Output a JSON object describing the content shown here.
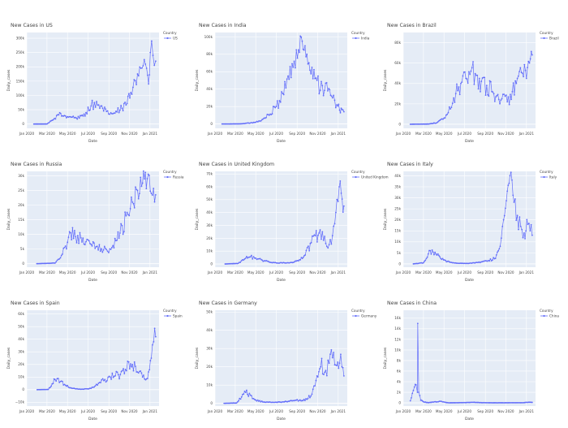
{
  "chart_data": [
    {
      "type": "line",
      "title": "New Cases in US",
      "xlabel": "Date",
      "ylabel": "Daily_cases",
      "legend_title": "Country",
      "legend_position": "top-right",
      "x_ticks": [
        "Jan 2020",
        "Mar 2020",
        "May 2020",
        "Jul 2020",
        "Sep 2020",
        "Nov 2020",
        "Jan 2021"
      ],
      "y_ticks": [
        "0",
        "50k",
        "100k",
        "150k",
        "200k",
        "250k",
        "300k"
      ],
      "y_tick_values": [
        0,
        50000,
        100000,
        150000,
        200000,
        250000,
        300000
      ],
      "ylim": [
        -15000,
        320000
      ],
      "series": [
        {
          "name": "US",
          "color": "#636efa",
          "x": [
            "2020-01-22",
            "2020-03-01",
            "2020-03-20",
            "2020-04-05",
            "2020-04-25",
            "2020-05-15",
            "2020-06-05",
            "2020-06-25",
            "2020-07-10",
            "2020-07-20",
            "2020-08-05",
            "2020-08-25",
            "2020-09-10",
            "2020-09-25",
            "2020-10-10",
            "2020-10-25",
            "2020-11-05",
            "2020-11-15",
            "2020-11-25",
            "2020-12-05",
            "2020-12-15",
            "2020-12-22",
            "2020-12-28",
            "2021-01-02",
            "2021-01-06",
            "2021-01-10",
            "2021-01-14",
            "2021-01-18"
          ],
          "y": [
            0,
            100,
            15000,
            32000,
            28000,
            24000,
            21000,
            40000,
            63000,
            75000,
            55000,
            44000,
            36000,
            42000,
            55000,
            72000,
            110000,
            155000,
            175000,
            195000,
            225000,
            195000,
            140000,
            250000,
            290000,
            240000,
            205000,
            220000
          ]
        }
      ]
    },
    {
      "type": "line",
      "title": "New Cases in India",
      "xlabel": "Date",
      "ylabel": "Daily_cases",
      "legend_title": "Country",
      "legend_position": "top-right",
      "x_ticks": [
        "Jan 2020",
        "Mar 2020",
        "May 2020",
        "Jul 2020",
        "Sep 2020",
        "Nov 2020",
        "Jan 2021"
      ],
      "y_ticks": [
        "0",
        "20k",
        "40k",
        "60k",
        "80k",
        "100k"
      ],
      "y_tick_values": [
        0,
        20000,
        40000,
        60000,
        80000,
        100000
      ],
      "ylim": [
        -5000,
        105000
      ],
      "series": [
        {
          "name": "India",
          "color": "#636efa",
          "x": [
            "2020-01-22",
            "2020-03-15",
            "2020-04-10",
            "2020-05-01",
            "2020-05-20",
            "2020-06-10",
            "2020-07-01",
            "2020-07-20",
            "2020-08-05",
            "2020-08-20",
            "2020-09-05",
            "2020-09-16",
            "2020-09-30",
            "2020-10-15",
            "2020-10-30",
            "2020-11-15",
            "2020-12-01",
            "2020-12-15",
            "2020-12-28",
            "2021-01-05",
            "2021-01-10",
            "2021-01-18"
          ],
          "y": [
            0,
            100,
            1000,
            2000,
            5000,
            10000,
            20000,
            35000,
            55000,
            65000,
            85000,
            95000,
            80000,
            65000,
            50000,
            44000,
            38000,
            30000,
            22000,
            16000,
            18000,
            14000
          ]
        }
      ]
    },
    {
      "type": "line",
      "title": "New Cases in Brazil",
      "xlabel": "Date",
      "ylabel": "Daily_cases",
      "legend_title": "Country",
      "legend_position": "top-right",
      "x_ticks": [
        "Jan 2020",
        "Mar 2020",
        "May 2020",
        "Jul 2020",
        "Sep 2020",
        "Nov 2020",
        "Jan 2021"
      ],
      "y_ticks": [
        "0",
        "20k",
        "40k",
        "60k",
        "80k"
      ],
      "y_tick_values": [
        0,
        20000,
        40000,
        60000,
        80000
      ],
      "ylim": [
        -4000,
        90000
      ],
      "series": [
        {
          "name": "Brazil",
          "color": "#636efa",
          "x": [
            "2020-01-22",
            "2020-03-15",
            "2020-04-10",
            "2020-05-01",
            "2020-05-20",
            "2020-06-05",
            "2020-06-20",
            "2020-07-05",
            "2020-07-20",
            "2020-08-05",
            "2020-08-20",
            "2020-09-05",
            "2020-09-20",
            "2020-10-05",
            "2020-10-20",
            "2020-11-05",
            "2020-11-20",
            "2020-12-05",
            "2020-12-20",
            "2021-01-01",
            "2021-01-10",
            "2021-01-18"
          ],
          "y": [
            0,
            200,
            1500,
            6000,
            15000,
            30000,
            40000,
            45000,
            52000,
            48000,
            42000,
            38000,
            32000,
            28000,
            25000,
            22000,
            32000,
            45000,
            50000,
            45000,
            60000,
            68000
          ]
        }
      ]
    },
    {
      "type": "line",
      "title": "New Cases in Russia",
      "xlabel": "Date",
      "ylabel": "Daily_cases",
      "legend_title": "Country",
      "legend_position": "top-right",
      "x_ticks": [
        "Jan 2020",
        "Mar 2020",
        "May 2020",
        "Jul 2020",
        "Sep 2020",
        "Nov 2020",
        "Jan 2021"
      ],
      "y_ticks": [
        "0",
        "5k",
        "10k",
        "15k",
        "20k",
        "25k",
        "30k"
      ],
      "y_tick_values": [
        0,
        5000,
        10000,
        15000,
        20000,
        25000,
        30000
      ],
      "ylim": [
        -1200,
        31500
      ],
      "series": [
        {
          "name": "Russia",
          "color": "#636efa",
          "x": [
            "2020-01-31",
            "2020-03-25",
            "2020-04-10",
            "2020-04-25",
            "2020-05-10",
            "2020-05-25",
            "2020-06-10",
            "2020-06-25",
            "2020-07-10",
            "2020-07-25",
            "2020-08-10",
            "2020-08-25",
            "2020-09-10",
            "2020-09-25",
            "2020-10-10",
            "2020-10-25",
            "2020-11-10",
            "2020-11-25",
            "2020-12-10",
            "2020-12-24",
            "2021-01-05",
            "2021-01-18"
          ],
          "y": [
            0,
            200,
            2000,
            6000,
            10500,
            9200,
            8800,
            7500,
            6600,
            5800,
            5100,
            4800,
            5500,
            8000,
            13000,
            17500,
            21000,
            25000,
            27500,
            29000,
            24000,
            23500
          ]
        }
      ]
    },
    {
      "type": "line",
      "title": "New Cases in United Kingdom",
      "xlabel": "Date",
      "ylabel": "Daily_cases",
      "legend_title": "Country",
      "legend_position": "top-right",
      "x_ticks": [
        "Jan 2020",
        "Mar 2020",
        "May 2020",
        "Jul 2020",
        "Sep 2020",
        "Nov 2020",
        "Jan 2021"
      ],
      "y_ticks": [
        "0",
        "10k",
        "20k",
        "30k",
        "40k",
        "50k",
        "60k",
        "70k"
      ],
      "y_tick_values": [
        0,
        10000,
        20000,
        30000,
        40000,
        50000,
        60000,
        70000
      ],
      "ylim": [
        -2500,
        72000
      ],
      "series": [
        {
          "name": "United Kingdom",
          "color": "#636efa",
          "x": [
            "2020-01-31",
            "2020-03-10",
            "2020-04-01",
            "2020-04-15",
            "2020-05-01",
            "2020-05-20",
            "2020-06-10",
            "2020-07-01",
            "2020-07-25",
            "2020-08-15",
            "2020-09-05",
            "2020-09-25",
            "2020-10-10",
            "2020-10-25",
            "2020-11-05",
            "2020-11-15",
            "2020-11-25",
            "2020-12-05",
            "2020-12-15",
            "2020-12-25",
            "2021-01-04",
            "2021-01-10",
            "2021-01-18"
          ],
          "y": [
            0,
            500,
            4500,
            5500,
            4500,
            3000,
            1500,
            800,
            900,
            1200,
            2500,
            7000,
            16000,
            22000,
            24000,
            25000,
            16000,
            15000,
            22000,
            40000,
            60000,
            55000,
            45000
          ]
        }
      ]
    },
    {
      "type": "line",
      "title": "New Cases in Italy",
      "xlabel": "Date",
      "ylabel": "Daily_cases",
      "legend_title": "Country",
      "legend_position": "top-right",
      "x_ticks": [
        "Jan 2020",
        "Mar 2020",
        "May 2020",
        "Jul 2020",
        "Sep 2020",
        "Nov 2020",
        "Jan 2021"
      ],
      "y_ticks": [
        "0",
        "5k",
        "10k",
        "15k",
        "20k",
        "25k",
        "30k",
        "35k",
        "40k"
      ],
      "y_tick_values": [
        0,
        5000,
        10000,
        15000,
        20000,
        25000,
        30000,
        35000,
        40000
      ],
      "ylim": [
        -1500,
        42000
      ],
      "series": [
        {
          "name": "Italy",
          "color": "#636efa",
          "x": [
            "2020-01-31",
            "2020-03-01",
            "2020-03-21",
            "2020-04-10",
            "2020-04-30",
            "2020-05-20",
            "2020-06-10",
            "2020-07-10",
            "2020-08-10",
            "2020-09-10",
            "2020-10-01",
            "2020-10-15",
            "2020-10-25",
            "2020-11-05",
            "2020-11-13",
            "2020-11-25",
            "2020-12-05",
            "2020-12-15",
            "2020-12-25",
            "2021-01-05",
            "2021-01-12",
            "2021-01-18"
          ],
          "y": [
            0,
            500,
            6000,
            4000,
            1800,
            700,
            300,
            200,
            600,
            1500,
            2500,
            8000,
            20000,
            33000,
            40000,
            28000,
            22000,
            17000,
            14000,
            18000,
            15000,
            13000
          ]
        }
      ]
    },
    {
      "type": "line",
      "title": "New Cases in Spain",
      "xlabel": "Date",
      "ylabel": "Daily_cases",
      "legend_title": "Country",
      "legend_position": "top-right",
      "x_ticks": [
        "Jan 2020",
        "Mar 2020",
        "May 2020",
        "Jul 2020",
        "Sep 2020",
        "Nov 2020",
        "Jan 2021"
      ],
      "y_ticks": [
        "−10k",
        "0",
        "10k",
        "20k",
        "30k",
        "40k",
        "50k",
        "60k"
      ],
      "y_tick_values": [
        -10000,
        0,
        10000,
        20000,
        30000,
        40000,
        50000,
        60000
      ],
      "ylim": [
        -13000,
        63000
      ],
      "series": [
        {
          "name": "Spain",
          "color": "#636efa",
          "x": [
            "2020-02-01",
            "2020-03-05",
            "2020-03-25",
            "2020-04-10",
            "2020-04-25",
            "2020-05-15",
            "2020-06-10",
            "2020-07-10",
            "2020-08-01",
            "2020-08-20",
            "2020-09-05",
            "2020-09-20",
            "2020-10-05",
            "2020-10-20",
            "2020-10-30",
            "2020-11-10",
            "2020-11-25",
            "2020-12-10",
            "2020-12-25",
            "2021-01-05",
            "2021-01-12",
            "2021-01-18"
          ],
          "y": [
            0,
            200,
            8000,
            6500,
            3500,
            1000,
            300,
            1000,
            5000,
            8000,
            10000,
            11000,
            12000,
            16000,
            22000,
            20000,
            14000,
            10000,
            9000,
            25000,
            38000,
            42000
          ]
        }
      ]
    },
    {
      "type": "line",
      "title": "New Cases in Germany",
      "xlabel": "Date",
      "ylabel": "Daily_cases",
      "legend_title": "Country",
      "legend_position": "top-right",
      "x_ticks": [
        "Jan 2020",
        "Mar 2020",
        "May 2020",
        "Jul 2020",
        "Sep 2020",
        "Nov 2020",
        "Jan 2021"
      ],
      "y_ticks": [
        "0",
        "10k",
        "20k",
        "30k",
        "40k",
        "50k"
      ],
      "y_tick_values": [
        0,
        10000,
        20000,
        30000,
        40000,
        50000
      ],
      "ylim": [
        -1500,
        51000
      ],
      "series": [
        {
          "name": "Germany",
          "color": "#636efa",
          "x": [
            "2020-01-28",
            "2020-03-05",
            "2020-03-20",
            "2020-04-01",
            "2020-04-15",
            "2020-05-01",
            "2020-05-25",
            "2020-06-25",
            "2020-07-25",
            "2020-08-20",
            "2020-09-10",
            "2020-09-30",
            "2020-10-15",
            "2020-10-30",
            "2020-11-10",
            "2020-11-25",
            "2020-12-05",
            "2020-12-15",
            "2020-12-25",
            "2021-01-05",
            "2021-01-12",
            "2021-01-18"
          ],
          "y": [
            0,
            200,
            3500,
            6000,
            4500,
            1800,
            700,
            500,
            800,
            1500,
            1800,
            2200,
            5000,
            15000,
            20000,
            18000,
            22000,
            25000,
            21000,
            22000,
            20000,
            15000
          ]
        }
      ]
    },
    {
      "type": "line",
      "title": "New Cases in China",
      "xlabel": "Date",
      "ylabel": "Daily_cases",
      "legend_title": "Country",
      "legend_position": "top-right",
      "x_ticks": [
        "Jan 2020",
        "Mar 2020",
        "May 2020",
        "Jul 2020",
        "Sep 2020",
        "Nov 2020",
        "Jan 2021"
      ],
      "y_ticks": [
        "0",
        "2k",
        "4k",
        "6k",
        "8k",
        "10k",
        "12k",
        "14k",
        "16k"
      ],
      "y_tick_values": [
        0,
        2000,
        4000,
        6000,
        8000,
        10000,
        12000,
        14000,
        16000
      ],
      "ylim": [
        -600,
        17500
      ],
      "series": [
        {
          "name": "China",
          "color": "#636efa",
          "x": [
            "2020-01-22",
            "2020-01-28",
            "2020-02-03",
            "2020-02-08",
            "2020-02-12",
            "2020-02-13",
            "2020-02-16",
            "2020-02-22",
            "2020-03-01",
            "2020-03-15",
            "2020-04-17",
            "2020-05-15",
            "2020-06-15",
            "2020-07-15",
            "2020-07-30",
            "2020-08-20",
            "2020-09-20",
            "2020-10-20",
            "2020-11-20",
            "2020-12-20",
            "2021-01-10",
            "2021-01-18"
          ],
          "y": [
            400,
            1800,
            3000,
            3400,
            2000,
            15000,
            2000,
            500,
            200,
            40,
            300,
            10,
            40,
            80,
            120,
            40,
            20,
            20,
            30,
            30,
            120,
            100
          ]
        }
      ]
    }
  ]
}
